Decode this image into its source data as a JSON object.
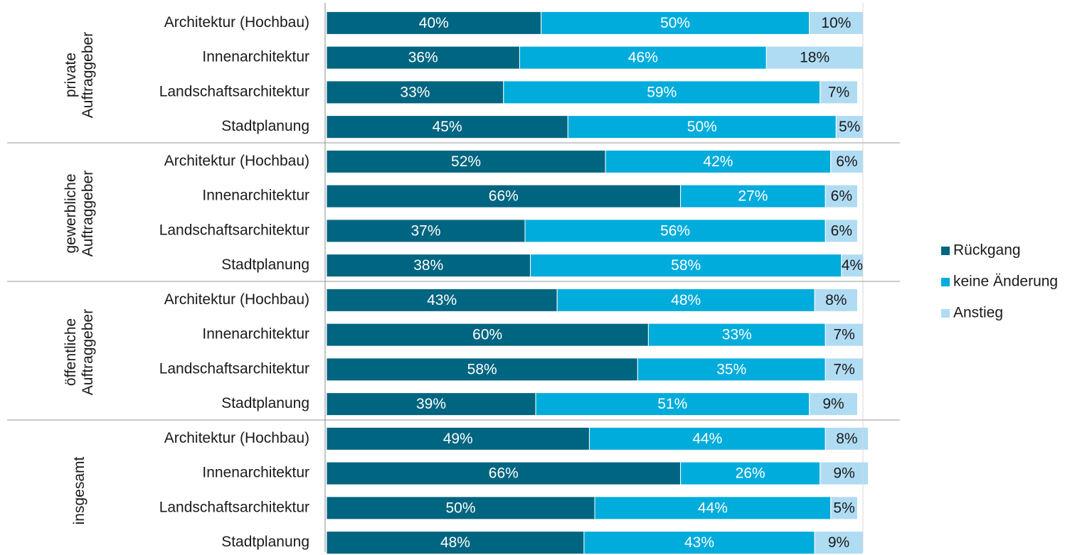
{
  "chart_data": {
    "type": "stacked-bar-horizontal",
    "groups": [
      {
        "name": "private Auftraggeber",
        "count": 4
      },
      {
        "name": "gewerbliche Auftraggeber",
        "count": 4
      },
      {
        "name": "öffentliche Auftraggeber",
        "count": 4
      },
      {
        "name": "insgesamt",
        "count": 4
      }
    ],
    "categories": [
      "Architektur (Hochbau)",
      "Innenarchitektur",
      "Landschaftsarchitektur",
      "Stadtplanung",
      "Architektur (Hochbau)",
      "Innenarchitektur",
      "Landschaftsarchitektur",
      "Stadtplanung",
      "Architektur (Hochbau)",
      "Innenarchitektur",
      "Landschaftsarchitektur",
      "Stadtplanung",
      "Architektur (Hochbau)",
      "Innenarchitektur",
      "Landschaftsarchitektur",
      "Stadtplanung"
    ],
    "series": [
      {
        "name": "Rückgang",
        "color": "#006580",
        "label_color": "#ffffff",
        "values": [
          40,
          36,
          33,
          45,
          52,
          66,
          37,
          38,
          43,
          60,
          58,
          39,
          49,
          66,
          50,
          48
        ],
        "value_labels": [
          "40%",
          "36%",
          "33%",
          "45%",
          "52%",
          "66%",
          "37%",
          "38%",
          "43%",
          "60%",
          "58%",
          "39%",
          "49%",
          "66%",
          "50%",
          "48%"
        ]
      },
      {
        "name": "keine Änderung",
        "color": "#00acdb",
        "label_color": "#ffffff",
        "values": [
          50,
          46,
          59,
          50,
          42,
          27,
          56,
          58,
          48,
          33,
          35,
          51,
          44,
          26,
          44,
          43
        ],
        "value_labels": [
          "50%",
          "46%",
          "59%",
          "50%",
          "42%",
          "27%",
          "56%",
          "58%",
          "48%",
          "33%",
          "35%",
          "51%",
          "44%",
          "26%",
          "44%",
          "43%"
        ]
      },
      {
        "name": "Anstieg",
        "color": "#b0dcf3",
        "label_color": "#1a1a1a",
        "values": [
          10,
          18,
          7,
          5,
          6,
          6,
          6,
          4,
          8,
          7,
          7,
          9,
          8,
          9,
          5,
          9
        ],
        "value_labels": [
          "10%",
          "18%",
          "7%",
          "5%",
          "6%",
          "6%",
          "6%",
          "4%",
          "8%",
          "7%",
          "7%",
          "9%",
          "8%",
          "9%",
          "5%",
          "9%"
        ]
      }
    ],
    "xlim": [
      0,
      100
    ],
    "legend": "right"
  }
}
